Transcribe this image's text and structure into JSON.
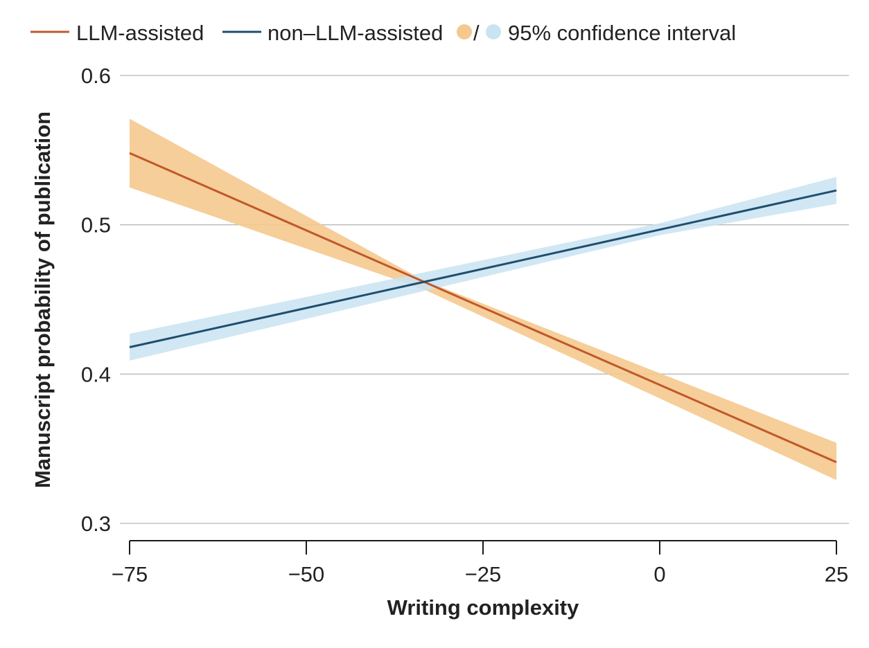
{
  "chart_data": {
    "type": "line",
    "xlabel": "Writing complexity",
    "ylabel": "Manuscript probability of publication",
    "xlim": [
      -75,
      25
    ],
    "ylim": [
      0.3,
      0.6
    ],
    "x_ticks": [
      "−75",
      "−50",
      "−25",
      "0",
      "25"
    ],
    "x_tick_values": [
      -75,
      -50,
      -25,
      0,
      25
    ],
    "y_ticks": [
      "0.3",
      "0.4",
      "0.5",
      "0.6"
    ],
    "y_tick_values": [
      0.3,
      0.4,
      0.5,
      0.6
    ],
    "grid": "horizontal",
    "legend_position": "top",
    "legend": {
      "ci_label": "95% confidence interval",
      "ci_separator": "/"
    },
    "series": [
      {
        "name": "LLM-assisted",
        "color": "#c0582a",
        "ci_color": "#f5c98e",
        "x": [
          -75,
          25
        ],
        "y": [
          0.548,
          0.341
        ],
        "ci_x": [
          -75,
          -33.5,
          25
        ],
        "ci_lower": [
          0.525,
          0.457,
          0.329
        ],
        "ci_upper": [
          0.571,
          0.463,
          0.354
        ]
      },
      {
        "name": "non–LLM-assisted",
        "color": "#1f4e6e",
        "ci_color": "#c9e3f2",
        "x": [
          -75,
          25
        ],
        "y": [
          0.418,
          0.523
        ],
        "ci_x": [
          -75,
          0,
          25
        ],
        "ci_lower": [
          0.409,
          0.493,
          0.514
        ],
        "ci_upper": [
          0.427,
          0.501,
          0.532
        ]
      }
    ]
  }
}
